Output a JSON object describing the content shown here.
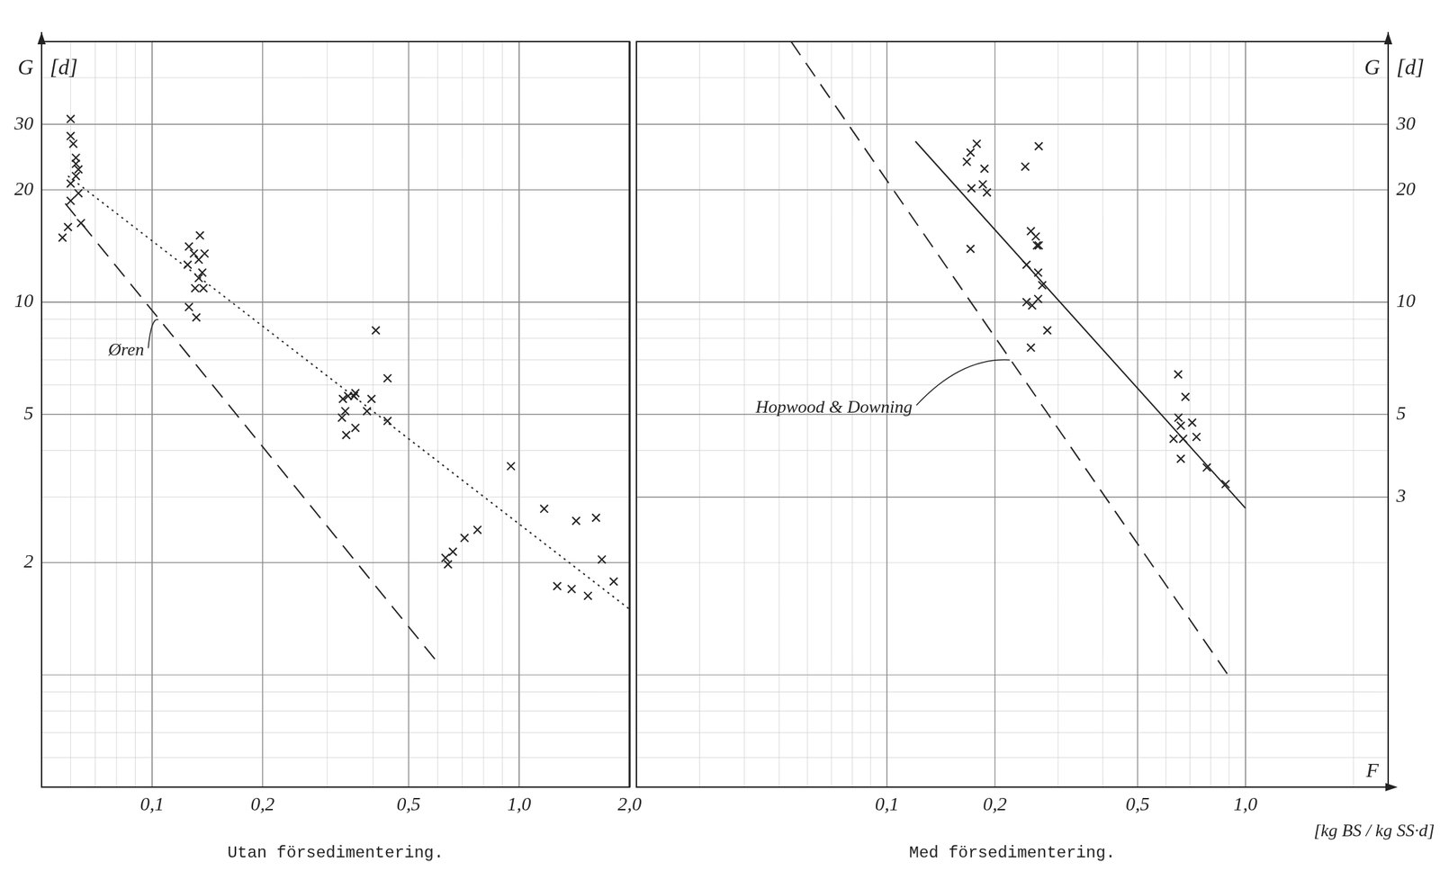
{
  "chart_data": [
    {
      "type": "scatter",
      "title": "Utan försedimentering.",
      "y_label": "G [d]",
      "log": true,
      "grid": true,
      "xlim": [
        0.05,
        2.0
      ],
      "ylim": [
        0.5,
        50
      ],
      "xticks": [
        {
          "value": 0.1,
          "label": "0,1"
        },
        {
          "value": 0.2,
          "label": "0,2"
        },
        {
          "value": 0.5,
          "label": "0,5"
        },
        {
          "value": 1.0,
          "label": "1,0"
        },
        {
          "value": 2.0,
          "label": "2,0"
        }
      ],
      "yticks": [
        2,
        5,
        10,
        20,
        30
      ],
      "series": [
        {
          "type": "scatter",
          "marker": "x",
          "color": "#222222",
          "x": [
            0.06,
            0.06,
            0.061,
            0.062,
            0.062,
            0.063,
            0.062,
            0.06,
            0.063,
            0.06,
            0.064,
            0.059,
            0.057,
            0.135,
            0.126,
            0.13,
            0.139,
            0.125,
            0.134,
            0.137,
            0.134,
            0.131,
            0.138,
            0.126,
            0.132,
            0.407,
            0.438,
            0.331,
            0.342,
            0.358,
            0.355,
            0.396,
            0.336,
            0.329,
            0.385,
            0.358,
            0.338,
            0.438,
            0.63,
            0.64,
            0.66,
            0.71,
            0.77,
            0.95,
            1.17,
            1.43,
            1.62,
            1.27,
            1.39,
            1.54,
            1.68,
            1.81
          ],
          "values": [
            31,
            27.9,
            26.6,
            24.4,
            23.5,
            22.7,
            21.8,
            20.8,
            19.6,
            18.7,
            16.3,
            15.9,
            14.9,
            15.1,
            14.1,
            13.5,
            13.5,
            12.6,
            13.0,
            12.0,
            11.6,
            10.9,
            10.9,
            9.7,
            9.1,
            8.4,
            6.25,
            5.5,
            5.6,
            5.7,
            5.6,
            5.5,
            5.1,
            4.9,
            5.1,
            4.6,
            4.4,
            4.8,
            2.06,
            1.98,
            2.14,
            2.33,
            2.45,
            3.63,
            2.79,
            2.59,
            2.64,
            1.73,
            1.7,
            1.63,
            2.04,
            1.78
          ]
        },
        {
          "type": "line",
          "line_style": "dashed",
          "color": "#222222",
          "x": [
            0.058,
            0.595
          ],
          "values": [
            18.4,
            1.09
          ]
        },
        {
          "type": "line",
          "line_style": "dotted",
          "color": "#222222",
          "x": [
            0.059,
            2.0
          ],
          "values": [
            21.8,
            1.5
          ]
        }
      ],
      "annotations": [
        {
          "text": "Øren",
          "x": 0.076,
          "y": 7.4,
          "arrow_x": 0.104,
          "arrow_y": 8.97
        }
      ]
    },
    {
      "type": "scatter",
      "title": "Med försedimentering.",
      "y_label": "G [d]",
      "x_label": "F",
      "x_unit": "[kg BS / kg SS·d]",
      "log": true,
      "grid": true,
      "xlim": [
        0.02,
        2.5
      ],
      "ylim": [
        0.5,
        50
      ],
      "xticks": [
        {
          "value": 0.1,
          "label": "0,1"
        },
        {
          "value": 0.2,
          "label": "0,2"
        },
        {
          "value": 0.5,
          "label": "0,5"
        },
        {
          "value": 1.0,
          "label": "1,0"
        }
      ],
      "yticks": [
        3,
        5,
        10,
        20,
        30
      ],
      "series": [
        {
          "type": "scatter",
          "marker": "x",
          "color": "#222222",
          "x": [
            0.178,
            0.171,
            0.167,
            0.265,
            0.187,
            0.243,
            0.172,
            0.185,
            0.19,
            0.252,
            0.26,
            0.265,
            0.262,
            0.171,
            0.245,
            0.264,
            0.271,
            0.245,
            0.264,
            0.254,
            0.28,
            0.252,
            0.649,
            0.68,
            0.65,
            0.71,
            0.66,
            0.63,
            0.67,
            0.73,
            0.66,
            0.78,
            0.88
          ],
          "values": [
            26.6,
            25.2,
            23.8,
            26.2,
            22.8,
            23.1,
            20.2,
            20.7,
            19.7,
            15.5,
            15.0,
            14.2,
            14.2,
            13.9,
            12.6,
            12.0,
            11.1,
            10.0,
            10.2,
            9.8,
            8.4,
            7.55,
            6.4,
            5.57,
            4.9,
            4.75,
            4.66,
            4.3,
            4.3,
            4.35,
            3.8,
            3.6,
            3.25
          ]
        },
        {
          "type": "line",
          "line_style": "solid",
          "color": "#222222",
          "x": [
            0.12,
            1.0
          ],
          "values": [
            27,
            2.8
          ]
        },
        {
          "type": "line",
          "line_style": "dashed",
          "color": "#222222",
          "x": [
            0.054,
            0.9
          ],
          "values": [
            50,
            0.99
          ]
        }
      ],
      "annotations": [
        {
          "text": "Hopwood & Downing",
          "x": 0.043,
          "y": 5.2,
          "arrow_x": 0.22,
          "arrow_y": 7.0
        }
      ]
    }
  ]
}
